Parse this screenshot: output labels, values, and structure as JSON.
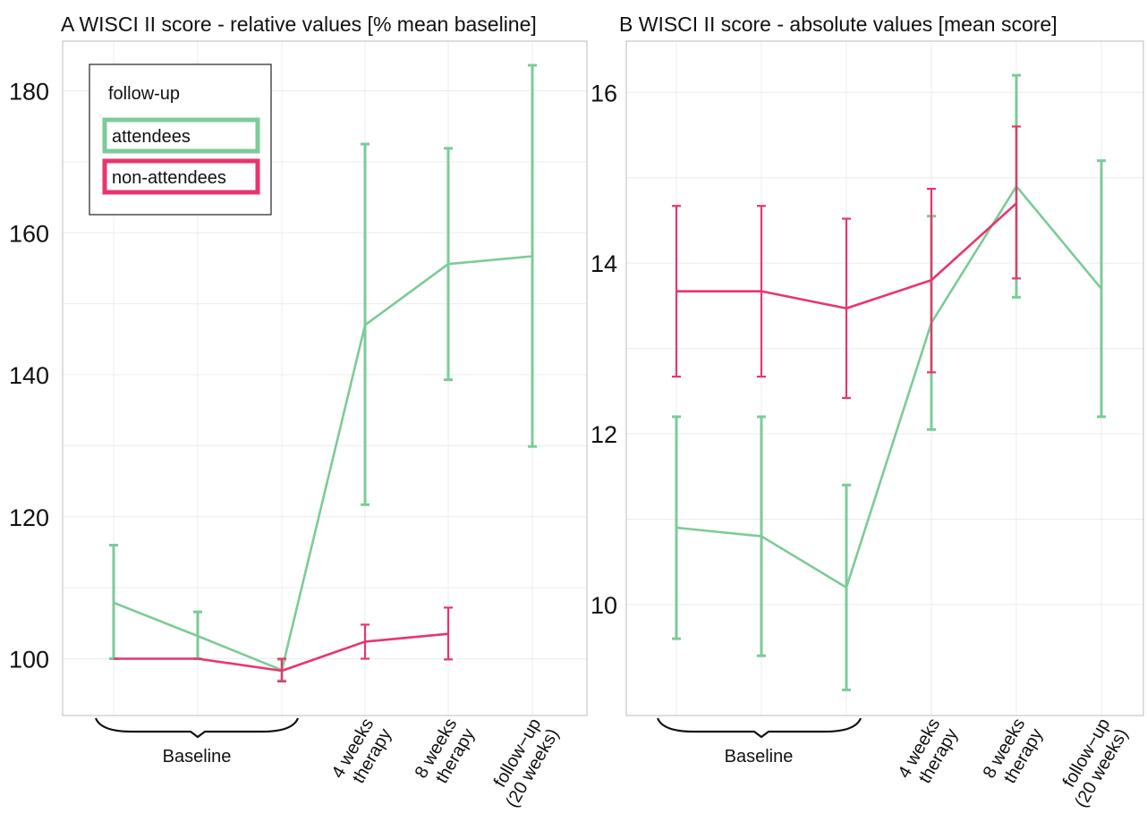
{
  "colors": {
    "attendees": "#7ccb98",
    "non_attendees": "#e8356d",
    "bracket": "#111111"
  },
  "legend": {
    "title": "follow-up",
    "items": [
      {
        "label": "attendees",
        "color": "#7ccb98"
      },
      {
        "label": "non-attendees",
        "color": "#e8356d"
      }
    ]
  },
  "baseline_label": "Baseline",
  "chart_data": [
    {
      "type": "line",
      "title": "A  WISCI II score - relative values [% mean baseline]",
      "xlabel": "",
      "ylabel": "",
      "ylim": [
        92,
        187
      ],
      "yticks": [
        100,
        120,
        140,
        160,
        180
      ],
      "categories": [
        "",
        "",
        "",
        "4 weeks\ntherapy",
        "8 weeks\ntherapy",
        "follow−up\n(20 weeks)"
      ],
      "baseline_group": [
        0,
        1,
        2
      ],
      "grid": true,
      "legend_position": "top-left",
      "series": [
        {
          "name": "attendees",
          "x": [
            0,
            1,
            2,
            3,
            4,
            5
          ],
          "values": [
            107.9,
            103.2,
            98.4,
            147.0,
            155.6,
            156.7
          ],
          "lower": [
            100.0,
            100.0,
            96.9,
            121.7,
            139.3,
            129.9
          ],
          "upper": [
            116.0,
            106.6,
            99.9,
            172.5,
            171.9,
            183.6
          ]
        },
        {
          "name": "non-attendees",
          "x": [
            0,
            1,
            2,
            3,
            4
          ],
          "values": [
            100.0,
            100.0,
            98.3,
            102.4,
            103.5
          ],
          "lower": [
            100.0,
            100.0,
            96.8,
            100.0,
            99.9
          ],
          "upper": [
            100.0,
            100.0,
            100.0,
            104.8,
            107.2
          ]
        }
      ]
    },
    {
      "type": "line",
      "title": "B  WISCI II score - absolute values [mean score]",
      "xlabel": "",
      "ylabel": "",
      "ylim": [
        8.7,
        16.6
      ],
      "yticks": [
        10,
        12,
        14,
        16
      ],
      "categories": [
        "",
        "",
        "",
        "4 weeks\ntherapy",
        "8 weeks\ntherapy",
        "follow−up\n(20 weeks)"
      ],
      "baseline_group": [
        0,
        1,
        2
      ],
      "grid": true,
      "legend_position": "none",
      "series": [
        {
          "name": "attendees",
          "x": [
            0,
            1,
            2,
            3,
            4,
            5
          ],
          "values": [
            10.9,
            10.8,
            10.2,
            13.3,
            14.9,
            13.7
          ],
          "lower": [
            9.6,
            9.4,
            9.0,
            12.05,
            13.6,
            12.2
          ],
          "upper": [
            12.2,
            12.2,
            11.4,
            14.55,
            16.2,
            15.2
          ]
        },
        {
          "name": "non-attendees",
          "x": [
            0,
            1,
            2,
            3,
            4
          ],
          "values": [
            13.67,
            13.67,
            13.47,
            13.8,
            14.7
          ],
          "lower": [
            12.67,
            12.67,
            12.42,
            12.72,
            13.82
          ],
          "upper": [
            14.67,
            14.67,
            14.52,
            14.87,
            15.6
          ]
        }
      ]
    }
  ]
}
